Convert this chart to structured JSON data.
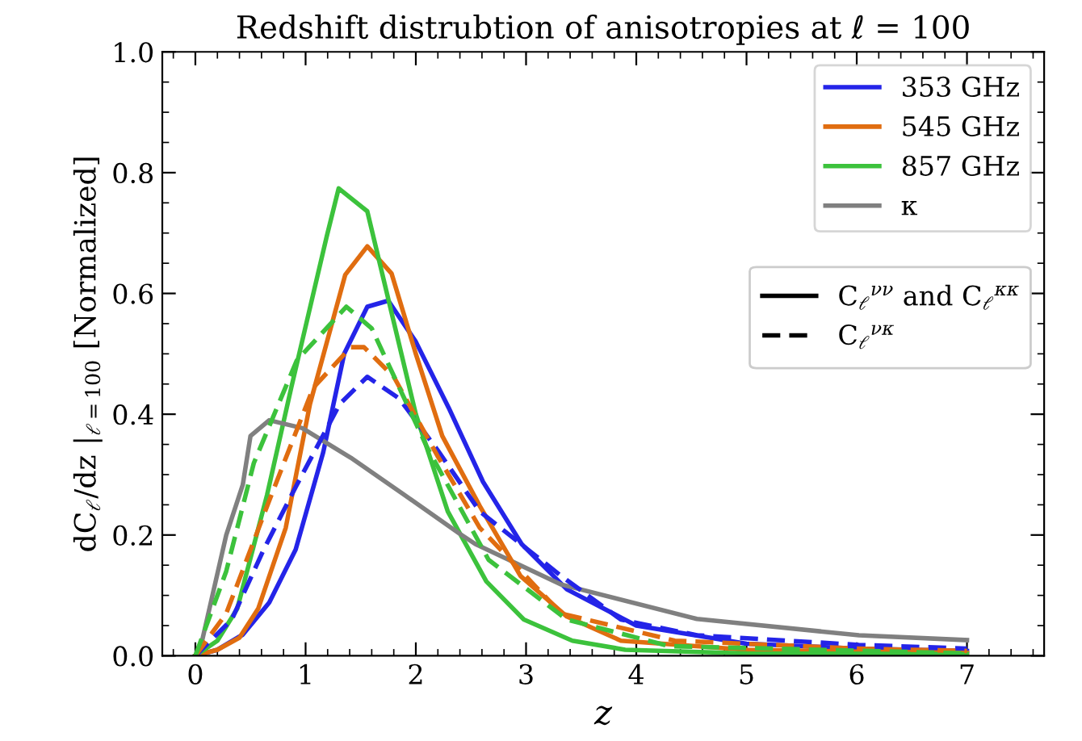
{
  "chart_data": {
    "type": "line",
    "title": "Redshift distrubtion of anisotropies at ℓ = 100",
    "xlabel": "z",
    "ylabel": "dC$_{ℓ}$/dz |$_{ℓ=100}$ [Normalized]",
    "xlim": [
      -0.3,
      7.7
    ],
    "xticks": [
      0,
      1,
      2,
      3,
      4,
      5,
      6,
      7
    ],
    "ylim": [
      0,
      1.0
    ],
    "yticks": [
      {
        "value": 0,
        "label": "0.0"
      },
      0.2,
      0.4,
      0.6,
      0.8,
      {
        "value": 1.0,
        "label": "1.0"
      }
    ],
    "grid": false,
    "legend": "top right",
    "marker": "none",
    "annotations": [
      "C$_{ℓ}$$^{νν}$ and C$_{ℓ}$$^{κκ}$",
      "C$_{ℓ}$$^{νκ}$"
    ],
    "series": [
      {
        "name": "353 GHz",
        "color": "#2424e8",
        "line_style": "solid",
        "x": [
          0,
          0.2,
          0.43,
          0.67,
          0.91,
          1.16,
          1.35,
          1.56,
          1.75,
          2.0,
          2.3,
          2.61,
          2.96,
          3.37,
          4,
          5,
          6,
          7
        ],
        "values": [
          0,
          0.01,
          0.035,
          0.088,
          0.176,
          0.337,
          0.5,
          0.578,
          0.588,
          0.52,
          0.41,
          0.288,
          0.185,
          0.11,
          0.05,
          0.02,
          0.012,
          0.008
        ]
      },
      {
        "name": "545 GHz",
        "color": "#e06d10",
        "line_style": "solid",
        "x": [
          0,
          0.2,
          0.4,
          0.57,
          0.82,
          1.04,
          1.36,
          1.56,
          1.78,
          2.0,
          2.24,
          2.58,
          2.95,
          3.37,
          3.86,
          5,
          6,
          7
        ],
        "values": [
          0,
          0.01,
          0.03,
          0.078,
          0.212,
          0.417,
          0.631,
          0.678,
          0.633,
          0.5,
          0.364,
          0.248,
          0.132,
          0.065,
          0.025,
          0.01,
          0.007,
          0.005
        ]
      },
      {
        "name": "857 GHz",
        "color": "#3cc23c",
        "line_style": "solid",
        "x": [
          0,
          0.2,
          0.38,
          0.65,
          0.87,
          1.19,
          1.3,
          1.56,
          2.0,
          2.29,
          2.64,
          2.98,
          3.42,
          3.9,
          5,
          7
        ],
        "values": [
          0,
          0.025,
          0.078,
          0.266,
          0.444,
          0.693,
          0.774,
          0.736,
          0.4,
          0.239,
          0.123,
          0.06,
          0.025,
          0.01,
          0.004,
          0.003
        ]
      },
      {
        "name": "κ",
        "color": "#808080",
        "line_style": "solid",
        "x": [
          0.03,
          0.18,
          0.28,
          0.43,
          0.5,
          0.67,
          0.97,
          1.41,
          1.9,
          2.39,
          2.54,
          3.32,
          4.55,
          6.02,
          7
        ],
        "values": [
          0,
          0.12,
          0.2,
          0.283,
          0.364,
          0.39,
          0.377,
          0.328,
          0.266,
          0.203,
          0.185,
          0.118,
          0.061,
          0.034,
          0.026
        ]
      },
      {
        "color": "#2424e8",
        "line_style": "dashed",
        "x": [
          0,
          0.33,
          0.62,
          0.92,
          1.31,
          1.56,
          1.85,
          2.2,
          2.58,
          3.32,
          3.86,
          4.55,
          6.02,
          7
        ],
        "values": [
          0,
          0.06,
          0.176,
          0.283,
          0.417,
          0.462,
          0.426,
          0.34,
          0.239,
          0.132,
          0.06,
          0.034,
          0.018,
          0.012
        ]
      },
      {
        "color": "#e06d10",
        "line_style": "dashed",
        "x": [
          0,
          0.28,
          0.67,
          1.07,
          1.41,
          1.53,
          1.8,
          2.2,
          2.58,
          3.32,
          4.35,
          6,
          7
        ],
        "values": [
          0,
          0.07,
          0.257,
          0.444,
          0.511,
          0.511,
          0.462,
          0.33,
          0.212,
          0.07,
          0.025,
          0.012,
          0.008
        ]
      },
      {
        "color": "#3cc23c",
        "line_style": "dashed",
        "x": [
          0,
          0.28,
          0.53,
          0.92,
          1.37,
          1.6,
          2.1,
          2.66,
          3.37,
          4.3,
          7
        ],
        "values": [
          0,
          0.14,
          0.319,
          0.489,
          0.578,
          0.542,
          0.346,
          0.159,
          0.06,
          0.016,
          0.004
        ]
      }
    ]
  }
}
